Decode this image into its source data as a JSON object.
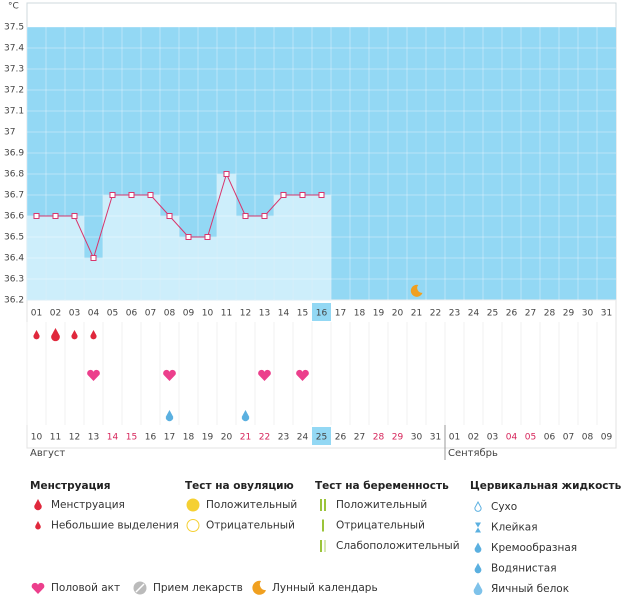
{
  "chart_data": {
    "type": "line",
    "y_unit": "°C",
    "x": [
      "01",
      "02",
      "03",
      "04",
      "05",
      "06",
      "07",
      "08",
      "09",
      "10",
      "11",
      "12",
      "13",
      "14",
      "15",
      "16",
      "17",
      "18",
      "19",
      "20",
      "21",
      "22",
      "23",
      "24",
      "25",
      "26",
      "27",
      "28",
      "29",
      "30",
      "31"
    ],
    "series": [
      {
        "color": "#d8356c",
        "fill": "#cdeefb",
        "values": [
          36.6,
          36.6,
          36.6,
          36.4,
          36.7,
          36.7,
          36.7,
          36.6,
          36.5,
          36.5,
          36.8,
          36.6,
          36.6,
          36.7,
          36.7,
          36.7,
          null,
          null,
          null,
          null,
          null,
          null,
          null,
          null,
          null,
          null,
          null,
          null,
          null,
          null,
          null
        ]
      }
    ],
    "background": "#93d8f4",
    "ylim": [
      36.2,
      37.6
    ],
    "yticks": [
      36.2,
      36.3,
      36.4,
      36.5,
      36.6,
      36.7,
      36.8,
      36.9,
      37,
      37.1,
      37.2,
      37.3,
      37.4,
      37.5
    ],
    "today": "16",
    "moon_day": "21",
    "dates": [
      "10",
      "11",
      "12",
      "13",
      "14",
      "15",
      "16",
      "17",
      "18",
      "19",
      "20",
      "21",
      "22",
      "23",
      "24",
      "25",
      "26",
      "27",
      "28",
      "29",
      "30",
      "31",
      "01",
      "02",
      "03",
      "04",
      "05",
      "06",
      "07",
      "08",
      "09"
    ],
    "weekend": [
      false,
      false,
      false,
      false,
      true,
      true,
      false,
      false,
      false,
      false,
      false,
      true,
      true,
      false,
      false,
      false,
      false,
      false,
      true,
      true,
      false,
      false,
      false,
      false,
      false,
      true,
      true,
      false,
      false,
      false,
      false
    ],
    "today_date": "25",
    "months": [
      {
        "name": "Август",
        "start": "10"
      },
      {
        "name": "Сентябрь",
        "start": "01"
      }
    ],
    "events": {
      "menstruation_light": [
        "01",
        "03",
        "04"
      ],
      "menstruation_heavy": [
        "02"
      ],
      "sex": [
        "04",
        "08",
        "13",
        "15"
      ],
      "fluid_creamy": [
        "08"
      ],
      "fluid_watery": [
        "12"
      ]
    },
    "legend": [
      {
        "title": "Менструация",
        "items": [
          "Менструация",
          "Небольшие выделения"
        ]
      },
      {
        "title": "Тест на овуляцию",
        "items": [
          "Положительный",
          "Отрицательный"
        ]
      },
      {
        "title": "Тест на беременность",
        "items": [
          "Положительный",
          "Отрицательный",
          "Слабоположительный"
        ]
      },
      {
        "title": "Цервикальная жидкость",
        "items": [
          "Сухо",
          "Клейкая",
          "Кремообразная",
          "Водянистая",
          "Яичный белок"
        ]
      }
    ],
    "legend_bottom": [
      "Половой акт",
      "Прием лекарств",
      "Лунный календарь"
    ]
  }
}
